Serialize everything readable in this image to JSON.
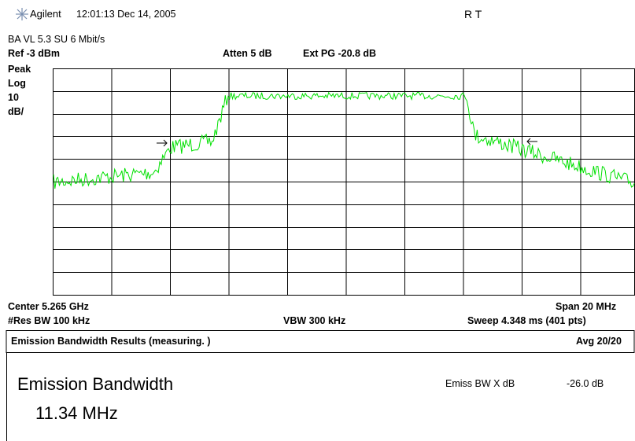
{
  "header": {
    "brand": "Agilent",
    "timestamp": "12:01:13  Dec 14, 2005",
    "status": "R   T"
  },
  "mode": "BA VL 5.3 SU 6 Mbit/s",
  "settings": {
    "ref": "Ref -3 dBm",
    "atten": "Atten 5 dB",
    "ext_pg": "Ext PG -20.8 dB"
  },
  "scale": [
    "Peak",
    "Log",
    "10",
    "dB/"
  ],
  "footer": {
    "center": "Center 5.265 GHz",
    "span": "Span 20 MHz",
    "res_bw": "#Res BW 100 kHz",
    "vbw": "VBW 300 kHz",
    "sweep": "Sweep 4.348 ms (401 pts)"
  },
  "results": {
    "title": "Emission Bandwidth Results (measuring. )",
    "avg": "Avg 20/20",
    "label": "Emission Bandwidth",
    "value": "11.34 MHz",
    "param_label": "Emiss BW X dB",
    "param_value": "-26.0 dB"
  }
}
